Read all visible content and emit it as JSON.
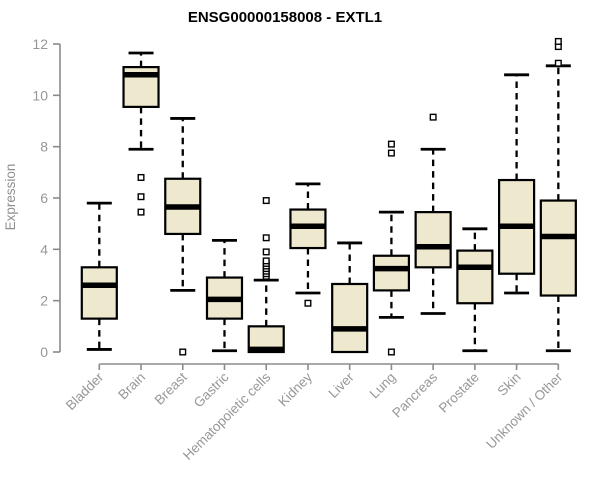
{
  "chart_data": {
    "type": "boxplot",
    "title": "ENSG00000158008 - EXTL1",
    "ylabel": "Expression",
    "xlabel": "",
    "ylim": [
      0,
      12
    ],
    "yticks": [
      0,
      2,
      4,
      6,
      8,
      10,
      12
    ],
    "grid": false,
    "categories": [
      "Bladder",
      "Brain",
      "Breast",
      "Gastric",
      "Hematopoietic cells",
      "Kidney",
      "Liver",
      "Lung",
      "Pancreas",
      "Prostate",
      "Skin",
      "Unknown / Other"
    ],
    "boxes": [
      {
        "label": "Bladder",
        "whisker_low": 0.1,
        "q1": 1.3,
        "median": 2.6,
        "q3": 3.3,
        "whisker_high": 5.8,
        "outliers": []
      },
      {
        "label": "Brain",
        "whisker_low": 7.9,
        "q1": 9.55,
        "median": 10.8,
        "q3": 11.1,
        "whisker_high": 11.65,
        "outliers": [
          6.8,
          6.05,
          5.45
        ]
      },
      {
        "label": "Breast",
        "whisker_low": 2.4,
        "q1": 4.6,
        "median": 5.65,
        "q3": 6.75,
        "whisker_high": 9.1,
        "outliers": [
          0.0
        ]
      },
      {
        "label": "Gastric",
        "whisker_low": 0.05,
        "q1": 1.3,
        "median": 2.05,
        "q3": 2.9,
        "whisker_high": 4.35,
        "outliers": []
      },
      {
        "label": "Hematopoietic cells",
        "whisker_low": 0.0,
        "q1": 0.0,
        "median": 0.1,
        "q3": 1.0,
        "whisker_high": 2.8,
        "outliers": [
          2.95,
          3.05,
          3.15,
          3.25,
          3.35,
          3.45,
          3.55,
          3.9,
          4.45,
          5.9
        ]
      },
      {
        "label": "Kidney",
        "whisker_low": 2.3,
        "q1": 4.05,
        "median": 4.9,
        "q3": 5.55,
        "whisker_high": 6.55,
        "outliers": [
          1.9
        ]
      },
      {
        "label": "Liver",
        "whisker_low": 0.0,
        "q1": 0.0,
        "median": 0.9,
        "q3": 2.65,
        "whisker_high": 4.25,
        "outliers": []
      },
      {
        "label": "Lung",
        "whisker_low": 1.35,
        "q1": 2.4,
        "median": 3.25,
        "q3": 3.75,
        "whisker_high": 5.45,
        "outliers": [
          8.1,
          7.75,
          0.0
        ]
      },
      {
        "label": "Pancreas",
        "whisker_low": 1.5,
        "q1": 3.3,
        "median": 4.1,
        "q3": 5.45,
        "whisker_high": 7.9,
        "outliers": [
          9.15
        ]
      },
      {
        "label": "Prostate",
        "whisker_low": 0.05,
        "q1": 1.9,
        "median": 3.3,
        "q3": 3.95,
        "whisker_high": 4.8,
        "outliers": []
      },
      {
        "label": "Skin",
        "whisker_low": 2.3,
        "q1": 3.05,
        "median": 4.9,
        "q3": 6.7,
        "whisker_high": 10.8,
        "outliers": []
      },
      {
        "label": "Unknown / Other",
        "whisker_low": 0.05,
        "q1": 2.2,
        "median": 4.5,
        "q3": 5.9,
        "whisker_high": 11.15,
        "outliers": [
          11.25,
          11.9,
          12.1
        ]
      }
    ],
    "colors": {
      "box_fill": "#EDE8CE",
      "box_border": "#000000",
      "median": "#000000",
      "whisker": "#000000",
      "outlier_fill": "#FFFFFF",
      "axis": "#8B8B8B",
      "tick_label": "#979797",
      "title": "#000000",
      "background": "#FFFFFF"
    }
  }
}
